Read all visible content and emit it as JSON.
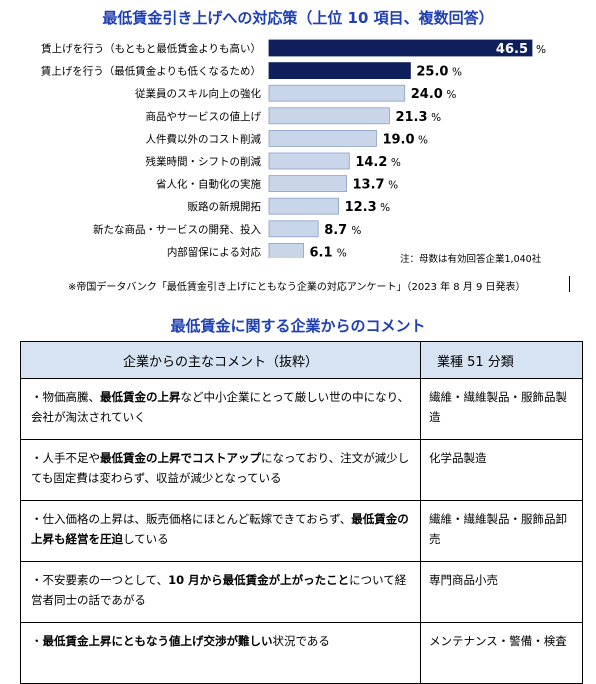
{
  "chart_title": "最低賃金引き上げへの対応策（上位 10 項目、複数回答）",
  "chart_note": "注：母数は有効回答企業1,040社",
  "source": "※帝国データバンク「最低賃金引き上げにともなう企業の対応アンケート」（2023 年 8 月 9 日発表）",
  "chart_data": {
    "type": "bar",
    "orientation": "horizontal",
    "title": "最低賃金引き上げへの対応策（上位 10 項目、複数回答）",
    "categories": [
      "賃上げを行う（もともと最低賃金よりも高い）",
      "賃上げを行う（最低賃金よりも低くなるため）",
      "従業員のスキル向上の強化",
      "商品やサービスの値上げ",
      "人件費以外のコスト削減",
      "残業時間・シフトの削減",
      "省人化・自動化の実施",
      "販路の新規開拓",
      "新たな商品・サービスの開発、投入",
      "内部留保による対応"
    ],
    "values": [
      46.5,
      25.0,
      24.0,
      21.3,
      19.0,
      14.2,
      13.7,
      12.3,
      8.7,
      6.1
    ],
    "value_labels": [
      "46.5",
      "25.0",
      "24.0",
      "21.3",
      "19.0",
      "14.2",
      "13.7",
      "12.3",
      "8.7",
      "6.1"
    ],
    "unit": "%",
    "colors": {
      "highlight": "#0e1f5c",
      "default": "#c9d5e9",
      "border": "#8aa0c4"
    },
    "highlight_count": 2,
    "xlim": [
      0,
      46.5
    ]
  },
  "comments_title": "最低賃金に関する企業からのコメント",
  "table": {
    "headers": [
      "企業からの主なコメント（抜粋）",
      "業種 51 分類"
    ],
    "rows": [
      {
        "comment": [
          {
            "t": "・物価高騰、",
            "b": false
          },
          {
            "t": "最低賃金の上昇",
            "b": true
          },
          {
            "t": "など中小企業にとって厳しい世の中になり、会社が淘汰されていく",
            "b": false
          }
        ],
        "industry": "繊維・繊維製品・服飾品製造"
      },
      {
        "comment": [
          {
            "t": "・人手不足や",
            "b": false
          },
          {
            "t": "最低賃金の上昇でコストアップ",
            "b": true
          },
          {
            "t": "になっており、注文が減少しても固定費は変わらず、収益が減少となっている",
            "b": false
          }
        ],
        "industry": "化学品製造"
      },
      {
        "comment": [
          {
            "t": "・仕入価格の上昇は、販売価格にほとんど転嫁できておらず、",
            "b": false
          },
          {
            "t": "最低賃金の上昇も経営を圧迫",
            "b": true
          },
          {
            "t": "している",
            "b": false
          }
        ],
        "industry": "繊維・繊維製品・服飾品卸売"
      },
      {
        "comment": [
          {
            "t": "・不安要素の一つとして、",
            "b": false
          },
          {
            "t": "10 月から最低賃金が上がったこと",
            "b": true
          },
          {
            "t": "について経営者同士の話であがる",
            "b": false
          }
        ],
        "industry": "専門商品小売"
      },
      {
        "comment": [
          {
            "t": "・",
            "b": false
          },
          {
            "t": "最低賃金上昇にともなう値上げ交渉が難しい",
            "b": true
          },
          {
            "t": "状況である",
            "b": false
          }
        ],
        "industry": "メンテナンス・警備・検査"
      }
    ]
  }
}
